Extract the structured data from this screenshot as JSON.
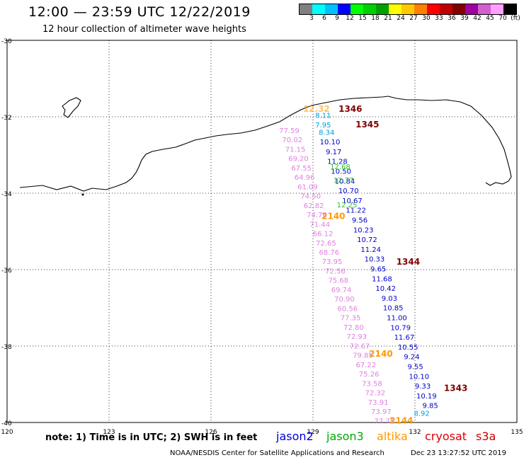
{
  "header": {
    "title": "12:00 — 23:59 UTC 12/22/2019",
    "subtitle": "12 hour collection of altimeter wave heights"
  },
  "color_scale": {
    "swatches": [
      "#808080",
      "#00ffff",
      "#00c0ff",
      "#0000ff",
      "#00ff00",
      "#00d000",
      "#00a000",
      "#ffff00",
      "#ffc800",
      "#ff8000",
      "#ff0000",
      "#c00000",
      "#800000",
      "#a000a0",
      "#d060d0",
      "#ffa0ff",
      "#000000"
    ],
    "labels": [
      "3",
      "6",
      "9",
      "12",
      "15",
      "18",
      "21",
      "24",
      "27",
      "30",
      "33",
      "36",
      "39",
      "42",
      "45",
      "70",
      "(ft)"
    ]
  },
  "map": {
    "lat_labels": [
      "-30",
      "-32",
      "-34",
      "-36",
      "-38",
      "-40"
    ],
    "lon_labels": [
      "120",
      "123",
      "126",
      "129",
      "132",
      "135"
    ]
  },
  "tracks": [
    {
      "satellite": "altika",
      "color": "#ff9900",
      "labels": [
        {
          "lon": 129.1,
          "lat": -31.8,
          "text": "12.32",
          "faint": true
        },
        {
          "lon": 129.6,
          "lat": -34.6,
          "text": "2140"
        },
        {
          "lon": 131.0,
          "lat": -38.2,
          "text": "2140"
        },
        {
          "lon": 131.6,
          "lat": -39.95,
          "text": "2144"
        }
      ]
    },
    {
      "satellite": "cryosat",
      "color": "#800000",
      "labels": [
        {
          "lon": 130.1,
          "lat": -31.8,
          "text": "1346"
        },
        {
          "lon": 130.6,
          "lat": -32.2,
          "text": "1345"
        },
        {
          "lon": 131.8,
          "lat": -35.8,
          "text": "1344"
        },
        {
          "lon": 133.2,
          "lat": -39.1,
          "text": "1343"
        }
      ]
    },
    {
      "satellite": "s3a-pink",
      "color": "#e080e0",
      "values": [
        "77.59",
        "70.02",
        "71.15",
        "69.20",
        "67.55",
        "64.96",
        "61.09",
        "74.50",
        "62.82",
        "74.76",
        "71.44",
        "66.12",
        "72.65",
        "68.76",
        "73.95",
        "72.56",
        "75.68",
        "69.74",
        "70.90",
        "60.56",
        "77.35",
        "72.80",
        "72.93",
        "72.67",
        "79.85",
        "67.22",
        "75.26",
        "73.58",
        "72.32",
        "73.91",
        "73.97",
        "77.75"
      ],
      "start": {
        "lon": 128.3,
        "lat": -32.35
      },
      "end": {
        "lon": 131.1,
        "lat": -39.95
      }
    },
    {
      "satellite": "jason2",
      "color": "#0000cc",
      "values": [
        "10.10",
        "9.17",
        "11.28",
        "10.50",
        "10.84",
        "10.70",
        "10.67",
        "11.22",
        "9.56",
        "10.23",
        "10.72",
        "11.24",
        "10.33",
        "9.65",
        "11.68",
        "10.42",
        "9.03",
        "10.85",
        "11.00",
        "10.79",
        "11.67",
        "10.55",
        "9.24",
        "9.55",
        "10.10",
        "9.33",
        "10.19",
        "9.85"
      ],
      "start": {
        "lon": 129.5,
        "lat": -32.65
      },
      "end": {
        "lon": 132.45,
        "lat": -39.55
      }
    },
    {
      "satellite": "jason3-cyan",
      "color": "#00a0e0",
      "labels": [
        {
          "lon": 129.3,
          "lat": -31.95,
          "text": "8.11"
        },
        {
          "lon": 129.3,
          "lat": -32.2,
          "text": "7.95"
        },
        {
          "lon": 129.4,
          "lat": -32.4,
          "text": "8.34"
        },
        {
          "lon": 132.2,
          "lat": -39.75,
          "text": "8.92"
        }
      ]
    },
    {
      "satellite": "jason3-green",
      "color": "#30c030",
      "labels": [
        {
          "lon": 129.8,
          "lat": -33.3,
          "text": "12.68"
        },
        {
          "lon": 129.9,
          "lat": -33.65,
          "text": "12.77"
        },
        {
          "lon": 130.0,
          "lat": -34.3,
          "text": "12.25"
        }
      ]
    }
  ],
  "footer": {
    "note": "note:  1) Time is in UTC;  2) SWH is in feet",
    "missions": [
      {
        "name": "jason2",
        "color": "#0000cc"
      },
      {
        "name": "jason3",
        "color": "#00aa00"
      },
      {
        "name": "altika",
        "color": "#ff9900"
      },
      {
        "name": "cryosat",
        "color": "#dd0000"
      },
      {
        "name": "s3a",
        "color": "#cc0000"
      }
    ],
    "credit": "NOAA/NESDIS Center for Satellite Applications and Research",
    "timestamp": "Dec 23 13:27:52 UTC 2019"
  }
}
